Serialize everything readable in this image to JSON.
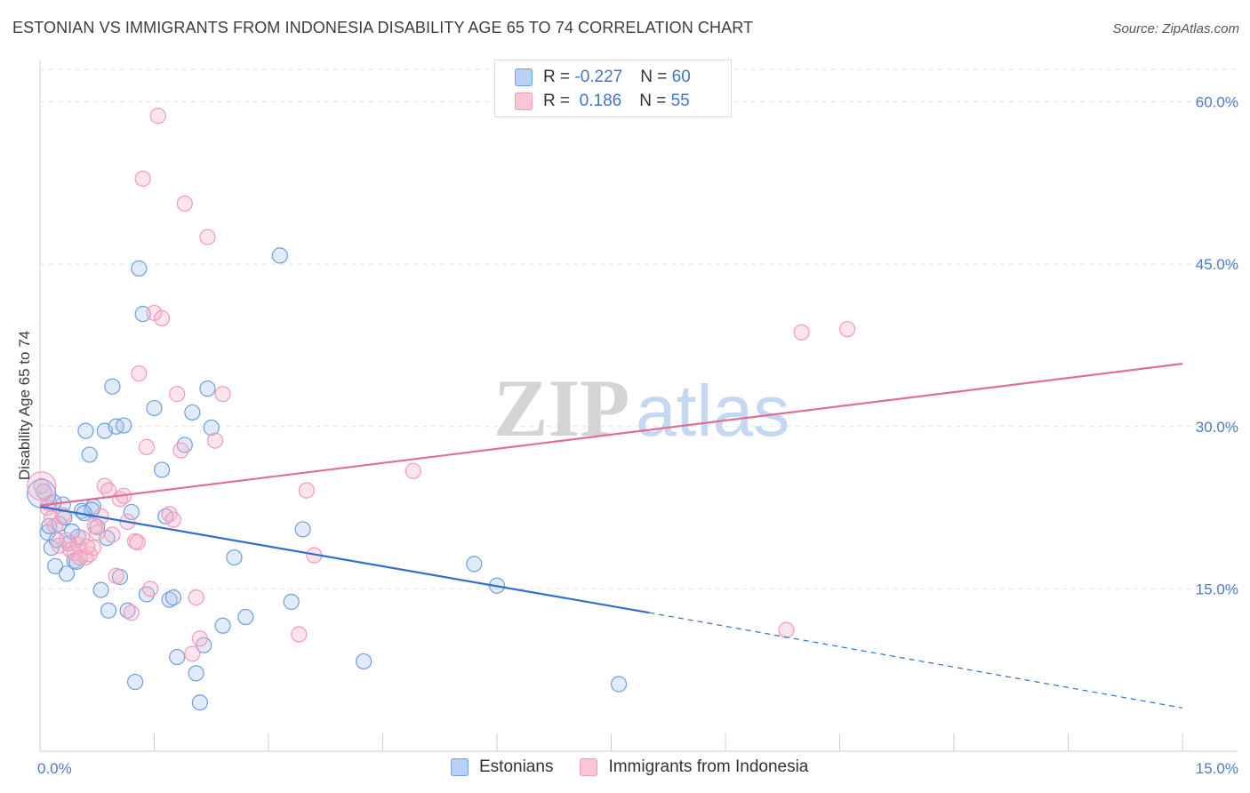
{
  "title": "ESTONIAN VS IMMIGRANTS FROM INDONESIA DISABILITY AGE 65 TO 74 CORRELATION CHART",
  "source": "Source: ZipAtlas.com",
  "watermark": {
    "zip": "ZIP",
    "atlas": "atlas"
  },
  "legend": {
    "rows": [
      {
        "r_label": "R = ",
        "r_value": "-0.227",
        "n_label": "N = ",
        "n_value": "60",
        "color": "#a9c6ef"
      },
      {
        "r_label": "R = ",
        "r_value": " 0.186",
        "n_label": "N = ",
        "n_value": "55",
        "color": "#f5b3c8"
      }
    ]
  },
  "bottom_legend": [
    "Estonians",
    "Immigrants from Indonesia"
  ],
  "chart_data": {
    "type": "scatter",
    "title": "ESTONIAN VS IMMIGRANTS FROM INDONESIA DISABILITY AGE 65 TO 74 CORRELATION CHART",
    "xlabel": "",
    "ylabel": "Disability Age 65 to 74",
    "xlim": [
      0,
      15
    ],
    "ylim": [
      0,
      63
    ],
    "x_ticks": [
      "0.0%",
      "15.0%"
    ],
    "y_ticks": [
      "15.0%",
      "30.0%",
      "45.0%",
      "60.0%"
    ],
    "y_tick_values": [
      15,
      30,
      45,
      60
    ],
    "grid": true,
    "legend_position": "top-center",
    "series": [
      {
        "name": "Estonians",
        "color": "#6f9fe0",
        "line_color": "#2f6fd0",
        "trend": {
          "x0": 0,
          "y0": 22.6,
          "x1": 8.0,
          "y1": 12.8,
          "dash_to_x": 15,
          "dash_to_y": 4.0
        },
        "points": [
          [
            0.05,
            24.0
          ],
          [
            0.1,
            20.2
          ],
          [
            0.12,
            20.8
          ],
          [
            0.15,
            18.8
          ],
          [
            0.2,
            17.1
          ],
          [
            0.25,
            21.0
          ],
          [
            0.3,
            22.8
          ],
          [
            0.35,
            16.4
          ],
          [
            0.38,
            19.2
          ],
          [
            0.45,
            17.6
          ],
          [
            0.5,
            19.8
          ],
          [
            0.55,
            22.2
          ],
          [
            0.6,
            29.6
          ],
          [
            0.65,
            27.4
          ],
          [
            0.7,
            22.6
          ],
          [
            0.75,
            20.7
          ],
          [
            0.8,
            14.9
          ],
          [
            0.85,
            29.6
          ],
          [
            0.9,
            13.0
          ],
          [
            0.95,
            33.7
          ],
          [
            1.0,
            30.0
          ],
          [
            1.05,
            16.1
          ],
          [
            1.1,
            30.1
          ],
          [
            1.15,
            13.0
          ],
          [
            1.2,
            22.1
          ],
          [
            1.25,
            6.4
          ],
          [
            1.3,
            44.6
          ],
          [
            1.35,
            40.4
          ],
          [
            1.4,
            14.5
          ],
          [
            1.5,
            31.7
          ],
          [
            1.6,
            26.0
          ],
          [
            1.65,
            21.7
          ],
          [
            1.7,
            14.0
          ],
          [
            1.75,
            14.2
          ],
          [
            1.8,
            8.7
          ],
          [
            1.9,
            28.3
          ],
          [
            2.0,
            31.3
          ],
          [
            2.05,
            7.2
          ],
          [
            2.1,
            4.5
          ],
          [
            2.15,
            9.8
          ],
          [
            2.2,
            33.5
          ],
          [
            2.25,
            29.9
          ],
          [
            2.4,
            11.6
          ],
          [
            2.55,
            17.9
          ],
          [
            2.7,
            12.4
          ],
          [
            3.3,
            13.8
          ],
          [
            3.15,
            45.8
          ],
          [
            3.45,
            20.5
          ],
          [
            4.25,
            8.3
          ],
          [
            5.7,
            17.3
          ],
          [
            6.0,
            15.3
          ],
          [
            7.6,
            6.2
          ],
          [
            0.42,
            20.3
          ],
          [
            0.68,
            22.3
          ],
          [
            0.22,
            19.5
          ],
          [
            0.88,
            19.7
          ],
          [
            0.18,
            23.0
          ],
          [
            0.32,
            21.6
          ],
          [
            0.48,
            17.5
          ],
          [
            0.58,
            22.0
          ]
        ]
      },
      {
        "name": "Immigrants from Indonesia",
        "color": "#f29bb8",
        "line_color": "#e06f98",
        "trend": {
          "x0": 0,
          "y0": 22.7,
          "x1": 15,
          "y1": 35.8
        },
        "points": [
          [
            0.02,
            24.5
          ],
          [
            0.1,
            22.5
          ],
          [
            0.15,
            21.5
          ],
          [
            0.2,
            20.8
          ],
          [
            0.25,
            19.0
          ],
          [
            0.35,
            19.5
          ],
          [
            0.4,
            18.6
          ],
          [
            0.45,
            18.3
          ],
          [
            0.5,
            19.1
          ],
          [
            0.55,
            19.7
          ],
          [
            0.6,
            17.9
          ],
          [
            0.65,
            18.2
          ],
          [
            0.7,
            18.8
          ],
          [
            0.75,
            20.2
          ],
          [
            0.8,
            21.7
          ],
          [
            0.85,
            24.5
          ],
          [
            0.9,
            24.1
          ],
          [
            0.95,
            20.0
          ],
          [
            1.0,
            16.2
          ],
          [
            1.05,
            23.3
          ],
          [
            1.1,
            23.6
          ],
          [
            1.15,
            21.2
          ],
          [
            1.2,
            12.8
          ],
          [
            1.25,
            19.4
          ],
          [
            1.3,
            34.9
          ],
          [
            1.35,
            52.9
          ],
          [
            1.4,
            28.1
          ],
          [
            1.45,
            15.0
          ],
          [
            1.5,
            40.5
          ],
          [
            1.55,
            58.7
          ],
          [
            1.6,
            40.0
          ],
          [
            1.7,
            21.9
          ],
          [
            1.75,
            21.4
          ],
          [
            1.8,
            33.0
          ],
          [
            1.85,
            27.8
          ],
          [
            1.9,
            50.6
          ],
          [
            2.0,
            9.0
          ],
          [
            2.05,
            14.2
          ],
          [
            2.1,
            10.4
          ],
          [
            2.2,
            47.5
          ],
          [
            2.3,
            28.7
          ],
          [
            2.4,
            33.0
          ],
          [
            3.4,
            10.8
          ],
          [
            3.5,
            24.1
          ],
          [
            3.6,
            18.1
          ],
          [
            4.9,
            25.9
          ],
          [
            9.8,
            11.2
          ],
          [
            10.0,
            38.7
          ],
          [
            10.6,
            39.0
          ],
          [
            0.3,
            21.8
          ],
          [
            0.52,
            17.9
          ],
          [
            0.72,
            20.8
          ],
          [
            0.12,
            22.9
          ],
          [
            0.62,
            18.9
          ],
          [
            1.28,
            19.3
          ]
        ]
      }
    ]
  }
}
